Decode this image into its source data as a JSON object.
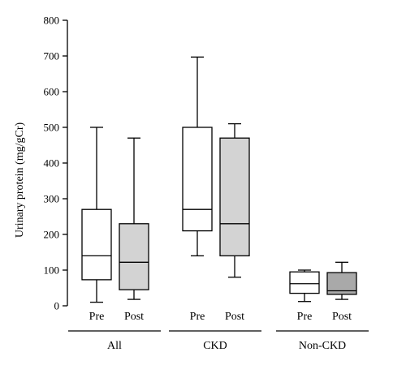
{
  "chart_data": {
    "type": "box",
    "ylabel": "Urinary protein (mg/gCr)",
    "ylim": [
      0,
      800
    ],
    "yticks": [
      0,
      100,
      200,
      300,
      400,
      500,
      600,
      700,
      800
    ],
    "grid": false,
    "groups": [
      {
        "label": "All",
        "boxes": [
          {
            "label": "Pre",
            "min": 10,
            "q1": 73,
            "median": 140,
            "q3": 270,
            "max": 500,
            "fill": "#ffffff"
          },
          {
            "label": "Post",
            "min": 18,
            "q1": 45,
            "median": 122,
            "q3": 230,
            "max": 470,
            "fill": "#d3d3d3"
          }
        ]
      },
      {
        "label": "CKD",
        "boxes": [
          {
            "label": "Pre",
            "min": 140,
            "q1": 210,
            "median": 270,
            "q3": 500,
            "max": 697,
            "fill": "#ffffff"
          },
          {
            "label": "Post",
            "min": 80,
            "q1": 140,
            "median": 230,
            "q3": 470,
            "max": 510,
            "fill": "#d3d3d3"
          }
        ]
      },
      {
        "label": "Non-CKD",
        "boxes": [
          {
            "label": "Pre",
            "min": 12,
            "q1": 35,
            "median": 62,
            "q3": 95,
            "max": 100,
            "fill": "#ffffff"
          },
          {
            "label": "Post",
            "min": 18,
            "q1": 32,
            "median": 42,
            "q3": 93,
            "max": 122,
            "fill": "#a9a9a9"
          }
        ]
      }
    ]
  }
}
